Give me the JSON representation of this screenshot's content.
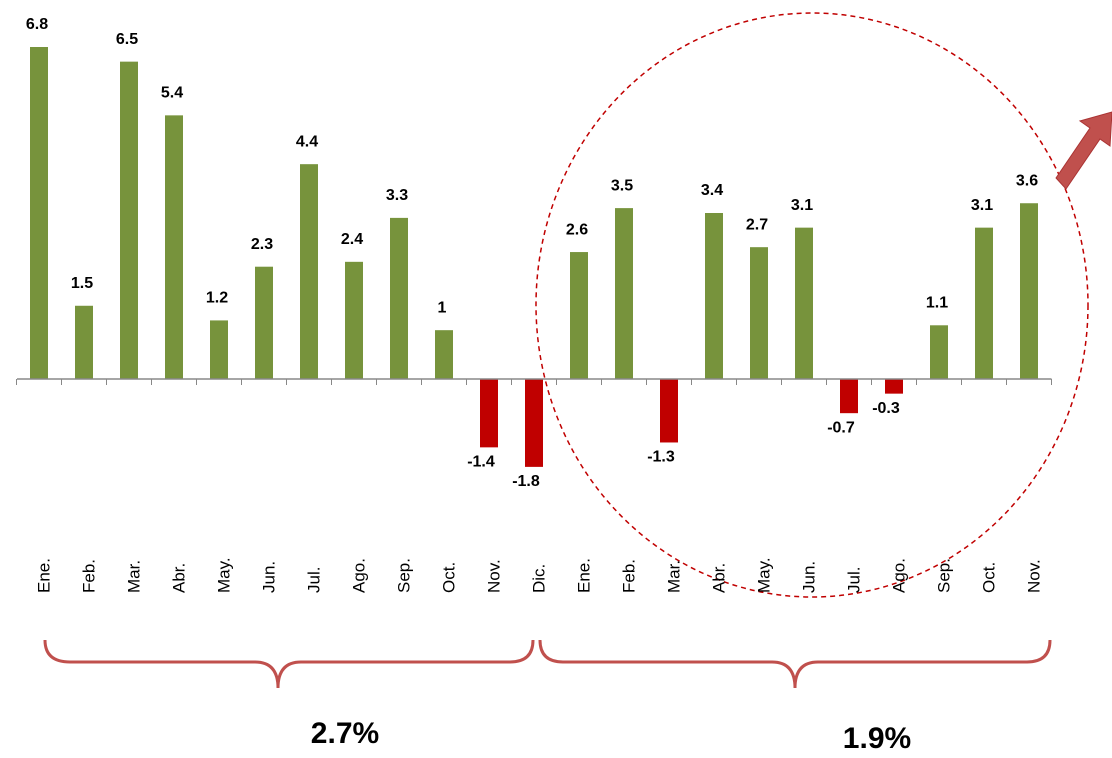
{
  "chart_data": {
    "type": "bar",
    "categories": [
      "Ene.",
      "Feb.",
      "Mar.",
      "Abr.",
      "May.",
      "Jun.",
      "Jul.",
      "Ago.",
      "Sep.",
      "Oct.",
      "Nov.",
      "Dic.",
      "Ene.",
      "Feb.",
      "Mar.",
      "Abr.",
      "May.",
      "Jun.",
      "Jul.",
      "Ago.",
      "Sep.",
      "Oct.",
      "Nov."
    ],
    "values": [
      6.8,
      1.5,
      6.5,
      5.4,
      1.2,
      2.3,
      4.4,
      2.4,
      3.3,
      1,
      -1.4,
      -1.8,
      2.6,
      3.5,
      -1.3,
      3.4,
      2.7,
      3.1,
      -0.7,
      -0.3,
      1.1,
      3.1,
      3.6
    ],
    "positive_color": "#77933c",
    "negative_color": "#c00000",
    "annotations": [
      "2.7%",
      "1.9%"
    ]
  }
}
